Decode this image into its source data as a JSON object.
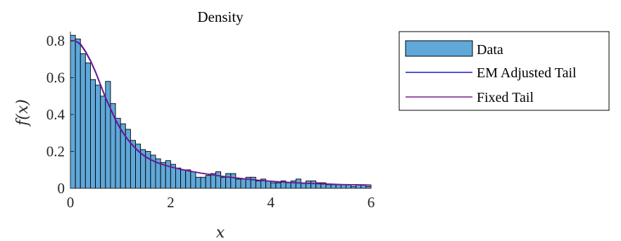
{
  "chart_data": {
    "type": "bar",
    "title": "Density",
    "xlabel": "x",
    "ylabel": "f(x)",
    "xlim": [
      0,
      6
    ],
    "ylim": [
      0,
      0.85
    ],
    "xticks": [
      "0",
      "2",
      "4",
      "6"
    ],
    "yticks": [
      "0",
      "0.2",
      "0.4",
      "0.6",
      "0.8"
    ],
    "grid": false,
    "legend_position": "outside-right",
    "bin_width": 0.1,
    "bin_starts": [
      0,
      0.1,
      0.2,
      0.3,
      0.4,
      0.5,
      0.6,
      0.7,
      0.8,
      0.9,
      1.0,
      1.1,
      1.2,
      1.3,
      1.4,
      1.5,
      1.6,
      1.7,
      1.8,
      1.9,
      2.0,
      2.1,
      2.2,
      2.3,
      2.4,
      2.5,
      2.6,
      2.7,
      2.8,
      2.9,
      3.0,
      3.1,
      3.2,
      3.3,
      3.4,
      3.5,
      3.6,
      3.7,
      3.8,
      3.9,
      4.0,
      4.1,
      4.2,
      4.3,
      4.4,
      4.5,
      4.6,
      4.7,
      4.8,
      4.9,
      5.0,
      5.1,
      5.2,
      5.3,
      5.4,
      5.5,
      5.6,
      5.7,
      5.8,
      5.9
    ],
    "bin_values": [
      0.83,
      0.81,
      0.73,
      0.68,
      0.59,
      0.56,
      0.5,
      0.58,
      0.46,
      0.38,
      0.35,
      0.32,
      0.26,
      0.24,
      0.21,
      0.2,
      0.18,
      0.16,
      0.14,
      0.15,
      0.13,
      0.11,
      0.1,
      0.1,
      0.09,
      0.06,
      0.06,
      0.07,
      0.08,
      0.09,
      0.06,
      0.08,
      0.08,
      0.05,
      0.05,
      0.06,
      0.06,
      0.04,
      0.05,
      0.04,
      0.03,
      0.03,
      0.04,
      0.03,
      0.04,
      0.05,
      0.03,
      0.04,
      0.04,
      0.03,
      0.03,
      0.02,
      0.02,
      0.02,
      0.02,
      0.02,
      0.01,
      0.02,
      0.02,
      0.01
    ],
    "series": [
      {
        "name": "Data",
        "type": "histogram",
        "color": "#5fa8d9"
      },
      {
        "name": "EM Adjusted Tail",
        "type": "line",
        "color": "#1a1acc",
        "x": [
          0,
          0.1,
          0.2,
          0.3,
          0.4,
          0.5,
          0.6,
          0.7,
          0.8,
          0.9,
          1.0,
          1.1,
          1.2,
          1.3,
          1.4,
          1.5,
          1.6,
          1.7,
          1.8,
          1.9,
          2.0,
          2.2,
          2.4,
          2.6,
          2.8,
          3.0,
          3.2,
          3.4,
          3.6,
          3.8,
          4.0,
          4.2,
          4.4,
          4.6,
          4.8,
          5.0,
          5.2,
          5.4,
          5.6,
          5.8,
          6.0
        ],
        "y": [
          0.8,
          0.8,
          0.78,
          0.74,
          0.69,
          0.63,
          0.56,
          0.49,
          0.43,
          0.37,
          0.32,
          0.28,
          0.245,
          0.215,
          0.19,
          0.17,
          0.155,
          0.142,
          0.132,
          0.124,
          0.116,
          0.103,
          0.092,
          0.082,
          0.074,
          0.066,
          0.059,
          0.053,
          0.047,
          0.042,
          0.038,
          0.034,
          0.031,
          0.028,
          0.026,
          0.024,
          0.022,
          0.02,
          0.019,
          0.018,
          0.017
        ]
      },
      {
        "name": "Fixed Tail",
        "type": "line",
        "color": "#7a1a8c",
        "x": [
          0,
          0.1,
          0.2,
          0.3,
          0.4,
          0.5,
          0.6,
          0.7,
          0.8,
          0.9,
          1.0,
          1.1,
          1.2,
          1.3,
          1.4,
          1.5,
          1.6,
          1.7,
          1.8,
          1.9,
          2.0,
          2.2,
          2.4,
          2.6,
          2.8,
          3.0,
          3.2,
          3.4,
          3.6,
          3.8,
          4.0,
          4.2,
          4.4,
          4.6,
          4.8,
          5.0,
          5.2,
          5.4,
          5.6,
          5.8,
          6.0
        ],
        "y": [
          0.8,
          0.8,
          0.785,
          0.745,
          0.695,
          0.635,
          0.565,
          0.495,
          0.435,
          0.375,
          0.325,
          0.283,
          0.248,
          0.218,
          0.193,
          0.172,
          0.157,
          0.144,
          0.134,
          0.125,
          0.117,
          0.104,
          0.093,
          0.083,
          0.075,
          0.067,
          0.06,
          0.054,
          0.048,
          0.043,
          0.039,
          0.035,
          0.032,
          0.029,
          0.027,
          0.025,
          0.023,
          0.021,
          0.02,
          0.019,
          0.018
        ]
      }
    ]
  }
}
